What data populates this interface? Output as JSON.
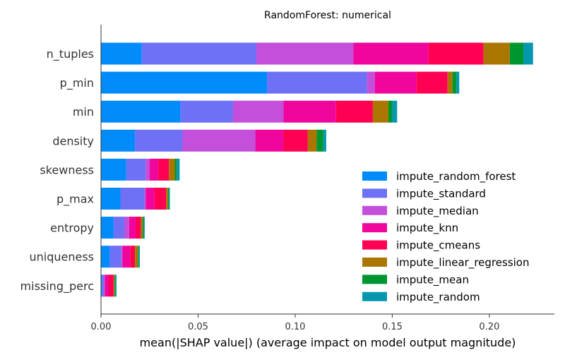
{
  "chart_data": {
    "type": "bar",
    "orientation": "horizontal",
    "stacked": true,
    "title": "RandomForest: numerical",
    "xlabel": "mean(|SHAP value|) (average impact on model output magnitude)",
    "ylabel": "",
    "xlim": [
      0.0,
      0.2335
    ],
    "xticks": [
      "0.00",
      "0.05",
      "0.10",
      "0.15",
      "0.20"
    ],
    "xtick_values": [
      0.0,
      0.05,
      0.1,
      0.15,
      0.2
    ],
    "grid": false,
    "legend_position": "lower-right",
    "categories": [
      "n_tuples",
      "p_min",
      "min",
      "density",
      "skewness",
      "p_max",
      "entropy",
      "uniqueness",
      "missing_perc"
    ],
    "series": [
      {
        "name": "impute_random_forest",
        "color": "#008bfb",
        "values": [
          0.021,
          0.0855,
          0.041,
          0.0175,
          0.013,
          0.01,
          0.0065,
          0.0045,
          0.0005
        ]
      },
      {
        "name": "impute_standard",
        "color": "#6e70f5",
        "values": [
          0.059,
          0.0515,
          0.027,
          0.0245,
          0.01,
          0.0125,
          0.0055,
          0.006,
          0.001
        ]
      },
      {
        "name": "impute_median",
        "color": "#c34fda",
        "values": [
          0.05,
          0.004,
          0.026,
          0.0375,
          0.002,
          0.0005,
          0.0025,
          0.0005,
          0.0005
        ]
      },
      {
        "name": "impute_knn",
        "color": "#f0059d",
        "values": [
          0.0385,
          0.0215,
          0.027,
          0.0145,
          0.0045,
          0.0045,
          0.0035,
          0.004,
          0.002
        ]
      },
      {
        "name": "impute_cmeans",
        "color": "#ff0052",
        "values": [
          0.0285,
          0.016,
          0.019,
          0.0125,
          0.0055,
          0.006,
          0.0025,
          0.0025,
          0.0025
        ]
      },
      {
        "name": "impute_linear_regression",
        "color": "#ab7600",
        "values": [
          0.0135,
          0.0025,
          0.008,
          0.0045,
          0.003,
          0.001,
          0.001,
          0.0015,
          0.0005
        ]
      },
      {
        "name": "impute_mean",
        "color": "#00962f",
        "values": [
          0.007,
          0.002,
          0.002,
          0.0035,
          0.001,
          0.0005,
          0.0005,
          0.0005,
          0.0005
        ]
      },
      {
        "name": "impute_random",
        "color": "#0597ad",
        "values": [
          0.005,
          0.0015,
          0.0025,
          0.0015,
          0.0015,
          0.0005,
          0.0005,
          0.0005,
          0.0005
        ]
      }
    ]
  }
}
